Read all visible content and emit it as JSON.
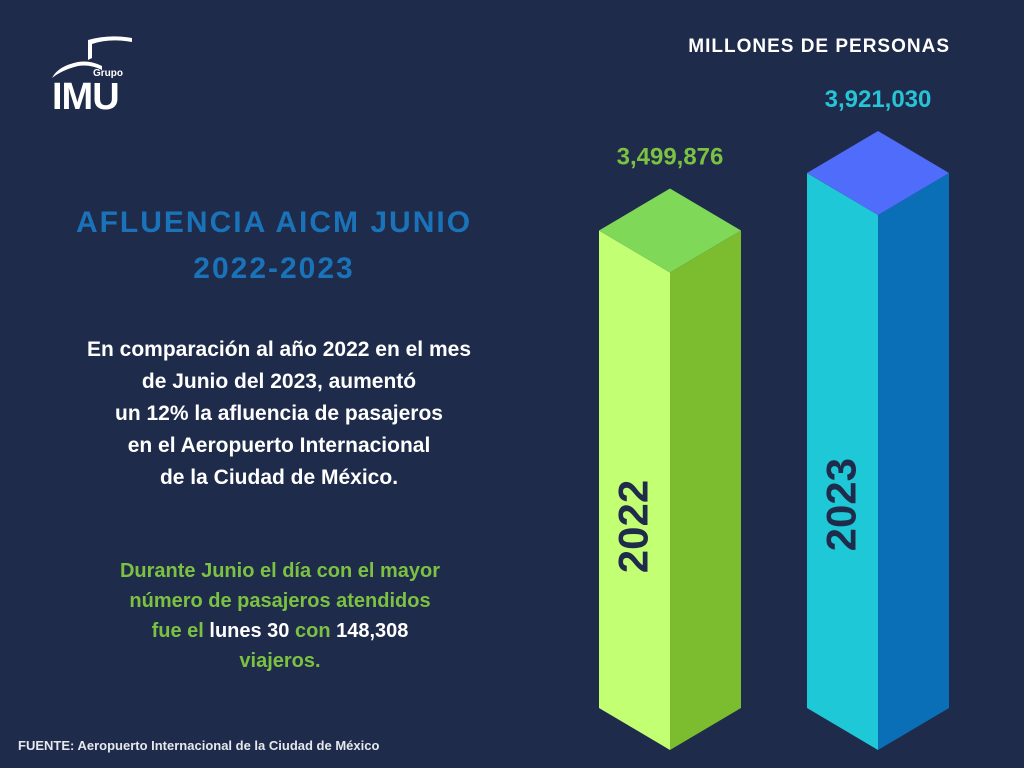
{
  "brand": {
    "small": "Grupo",
    "name": "IMU"
  },
  "units_label": "MILLONES DE PERSONAS",
  "title": {
    "line1": "AFLUENCIA AICM JUNIO",
    "line2": "2022-2023"
  },
  "paragraph": {
    "lines": [
      "En comparación al año 2022 en el mes",
      "de Junio del 2023, aumentó",
      "un 12% la afluencia de pasajeros",
      "en el Aeropuerto Internacional",
      "de la Ciudad de México."
    ]
  },
  "highlight": {
    "line1": "Durante Junio el día con el mayor",
    "line2": "número de pasajeros atendidos",
    "line3_pre": "fue el ",
    "day": "lunes 30",
    "line3_mid": " con ",
    "count": "148,308",
    "line4": "viajeros."
  },
  "footer": "FUENTE: Aeropuerto Internacional de la Ciudad de México",
  "chart_data": {
    "type": "bar",
    "title": "AFLUENCIA AICM JUNIO 2022-2023",
    "ylabel": "MILLONES DE PERSONAS",
    "xlabel": "",
    "categories": [
      "2022",
      "2023"
    ],
    "values": [
      3499876,
      3921030
    ],
    "value_labels": [
      "3,499,876",
      "3,921,030"
    ],
    "ylim": [
      0,
      3921030
    ],
    "style": "3d-isometric"
  },
  "colors": {
    "background": "#1f2b4b",
    "title": "#1a73b8",
    "accent_green": "#7bc142",
    "label_2023": "#27c3d6",
    "bar_2022": {
      "front": "#c2ff73",
      "side": "#7bbd2f",
      "top": "#7fd858"
    },
    "bar_2023": {
      "front": "#1fc8d6",
      "side": "#0b6fb8",
      "top": "#4f6dfa"
    },
    "bar_text": "#1f2b4b"
  }
}
